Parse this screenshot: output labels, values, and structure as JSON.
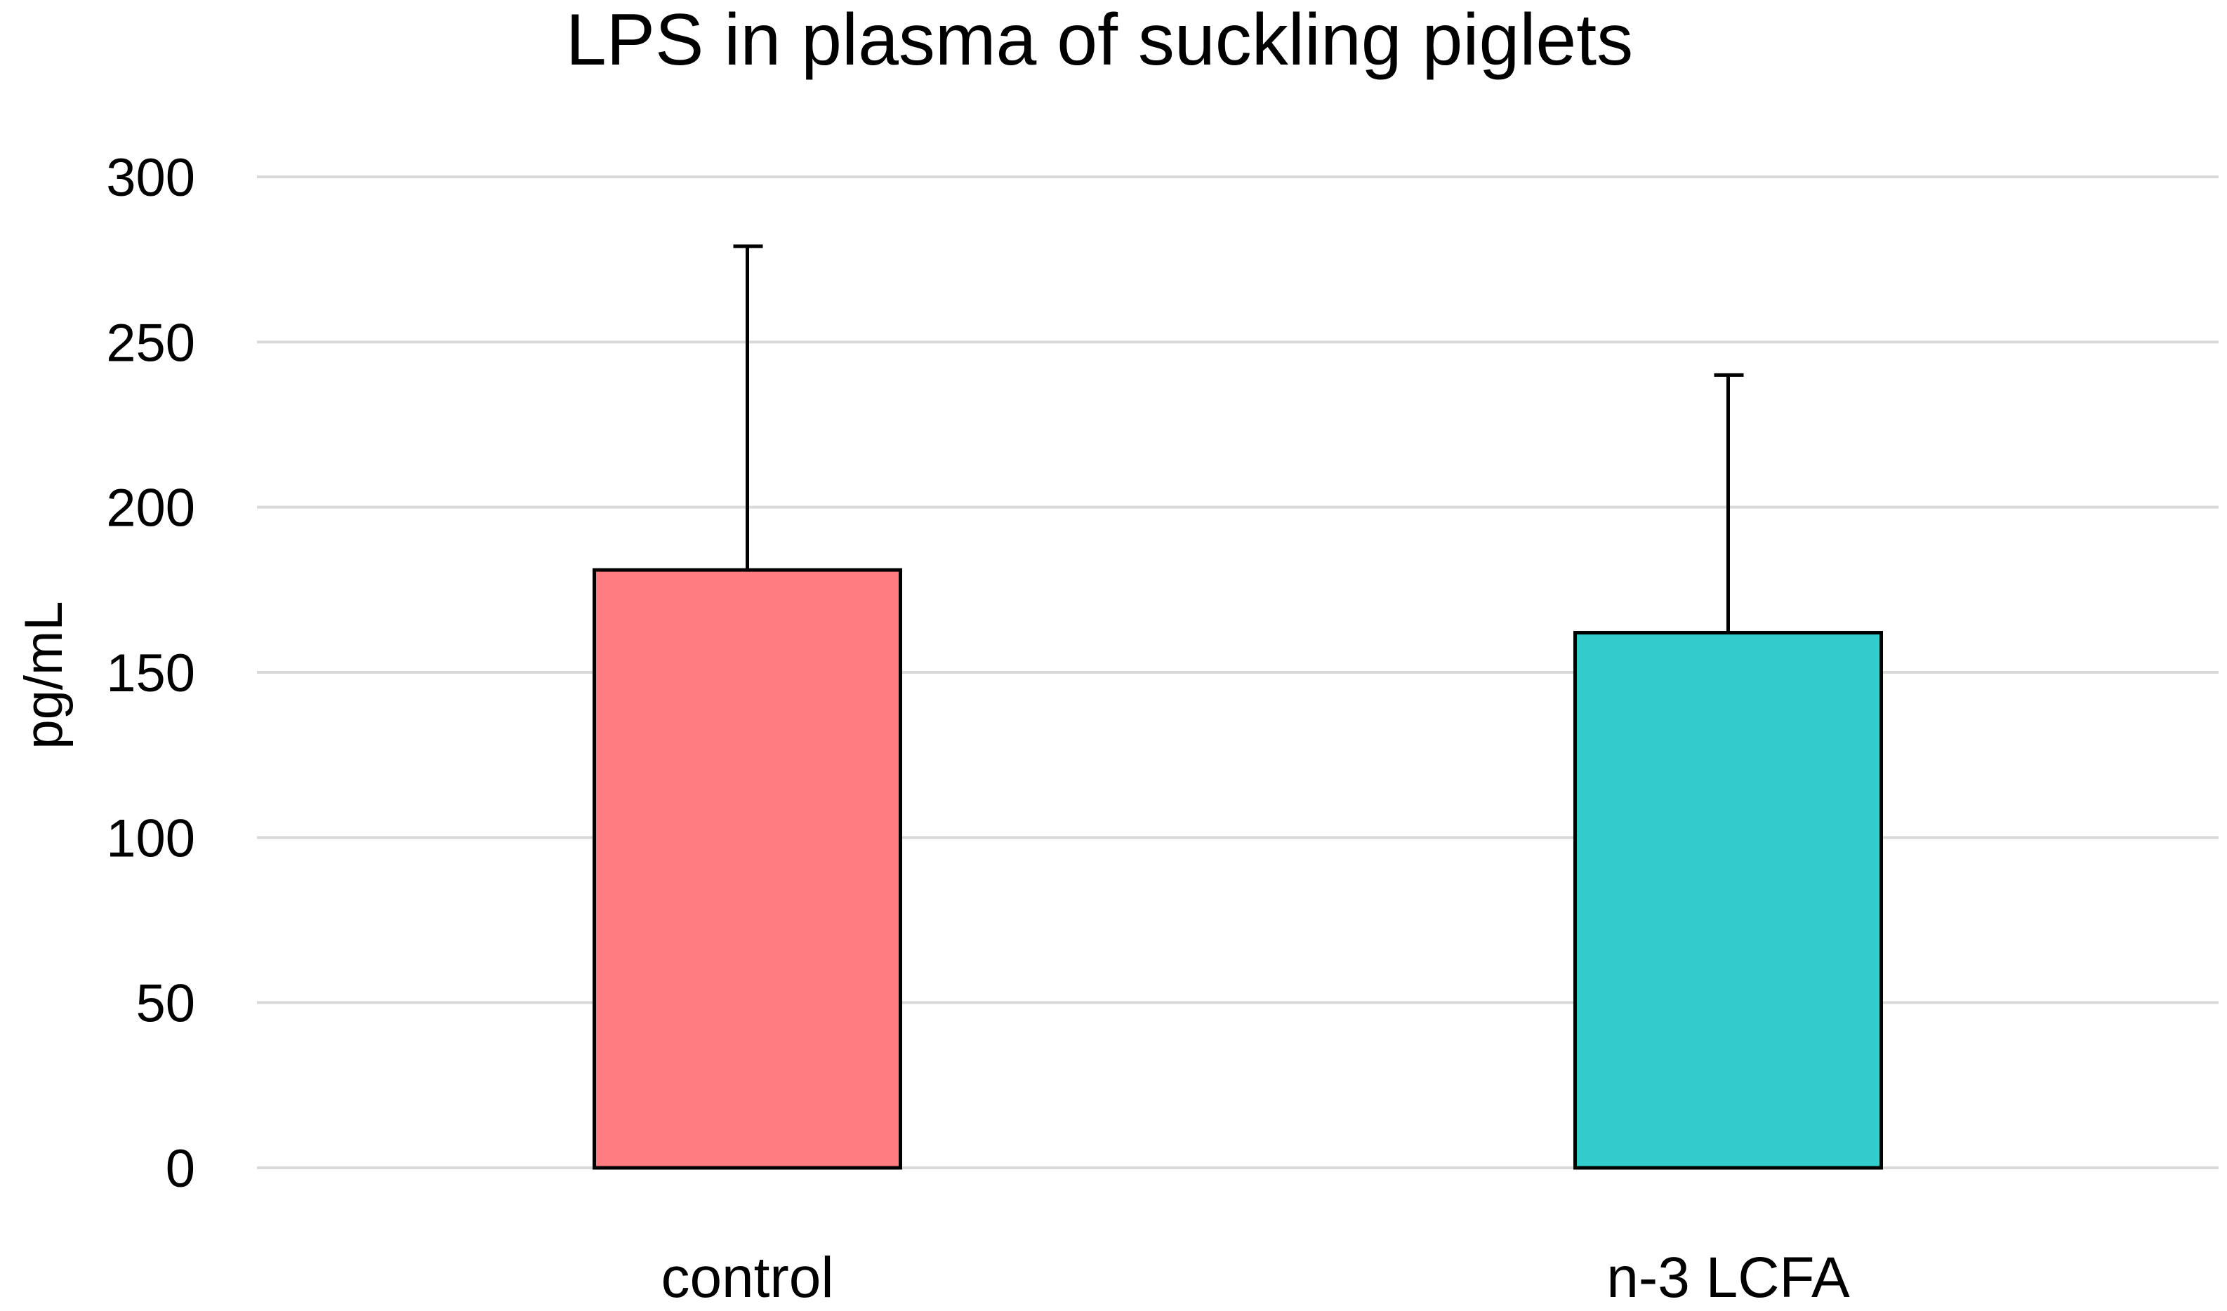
{
  "chart_data": {
    "type": "bar",
    "title": "LPS in plasma of suckling piglets",
    "xlabel": "",
    "ylabel": "pg/mL",
    "ylim": [
      0,
      300
    ],
    "yticks": [
      0,
      50,
      100,
      150,
      200,
      250,
      300
    ],
    "grid": true,
    "categories": [
      "control",
      "n-3 LCFA"
    ],
    "values": [
      181,
      162
    ],
    "error_upper": [
      98,
      78
    ],
    "colors": [
      "#ff7c80",
      "#33cccc"
    ]
  }
}
